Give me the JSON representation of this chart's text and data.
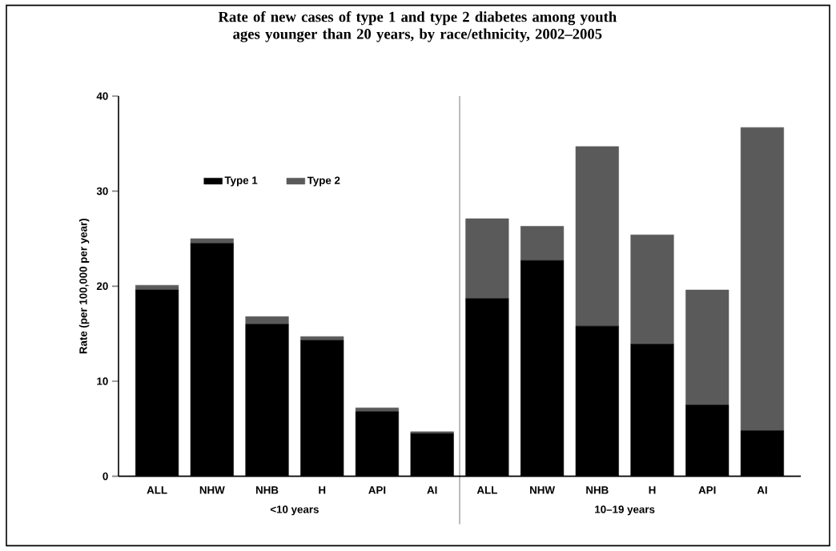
{
  "chart_data": {
    "type": "bar",
    "stacked": true,
    "title": "Rate of new cases of type 1 and type 2 diabetes among youth ages younger than 20 years, by race/ethnicity, 2002–2005",
    "ylabel": "Rate (per 100,000 per year)",
    "categories": [
      "ALL",
      "NHW",
      "NHB",
      "H",
      "API",
      "AI",
      "ALL",
      "NHW",
      "NHB",
      "H",
      "API",
      "AI"
    ],
    "series": [
      {
        "name": "Type 1",
        "color": "#000000",
        "values": [
          19.6,
          24.5,
          16.0,
          14.3,
          6.8,
          4.5,
          18.7,
          22.7,
          15.8,
          13.9,
          7.5,
          4.8
        ]
      },
      {
        "name": "Type 2",
        "color": "#5a5a5a",
        "values": [
          0.5,
          0.5,
          0.8,
          0.4,
          0.4,
          0.2,
          8.4,
          3.6,
          18.9,
          11.5,
          12.1,
          31.9
        ]
      }
    ],
    "ylim": [
      0,
      40
    ],
    "yticks": [
      0,
      10,
      20,
      30,
      40
    ],
    "annotations": [
      "<10 years",
      "10–19 years"
    ],
    "legend": "top left",
    "grid": false
  }
}
